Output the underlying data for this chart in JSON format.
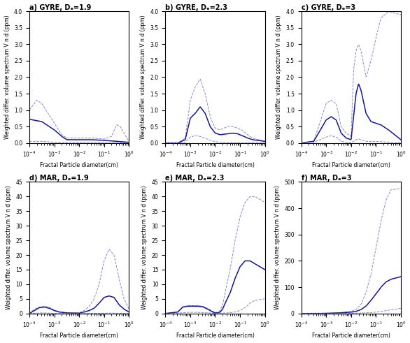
{
  "titles": [
    "a) GYRE, Dₑ=1.9",
    "b) GYRE, Dₑ=2.3",
    "c) GYRE, Dₑ=3",
    "d) MAR, Dₑ=1.9",
    "e) MAR, Dₑ=2.3",
    "f) MAR, Dₑ=3"
  ],
  "xlabel": "Fractal Particle diameter(cm)",
  "ylabel": "Weighted differ. volume spectrum V n d (ppm)",
  "c_dark": "#1515a0",
  "c_light": "#8888cc",
  "background_color": "#ffffff",
  "title_fontsize": 7,
  "label_fontsize": 5.5,
  "tick_fontsize": 5.5
}
